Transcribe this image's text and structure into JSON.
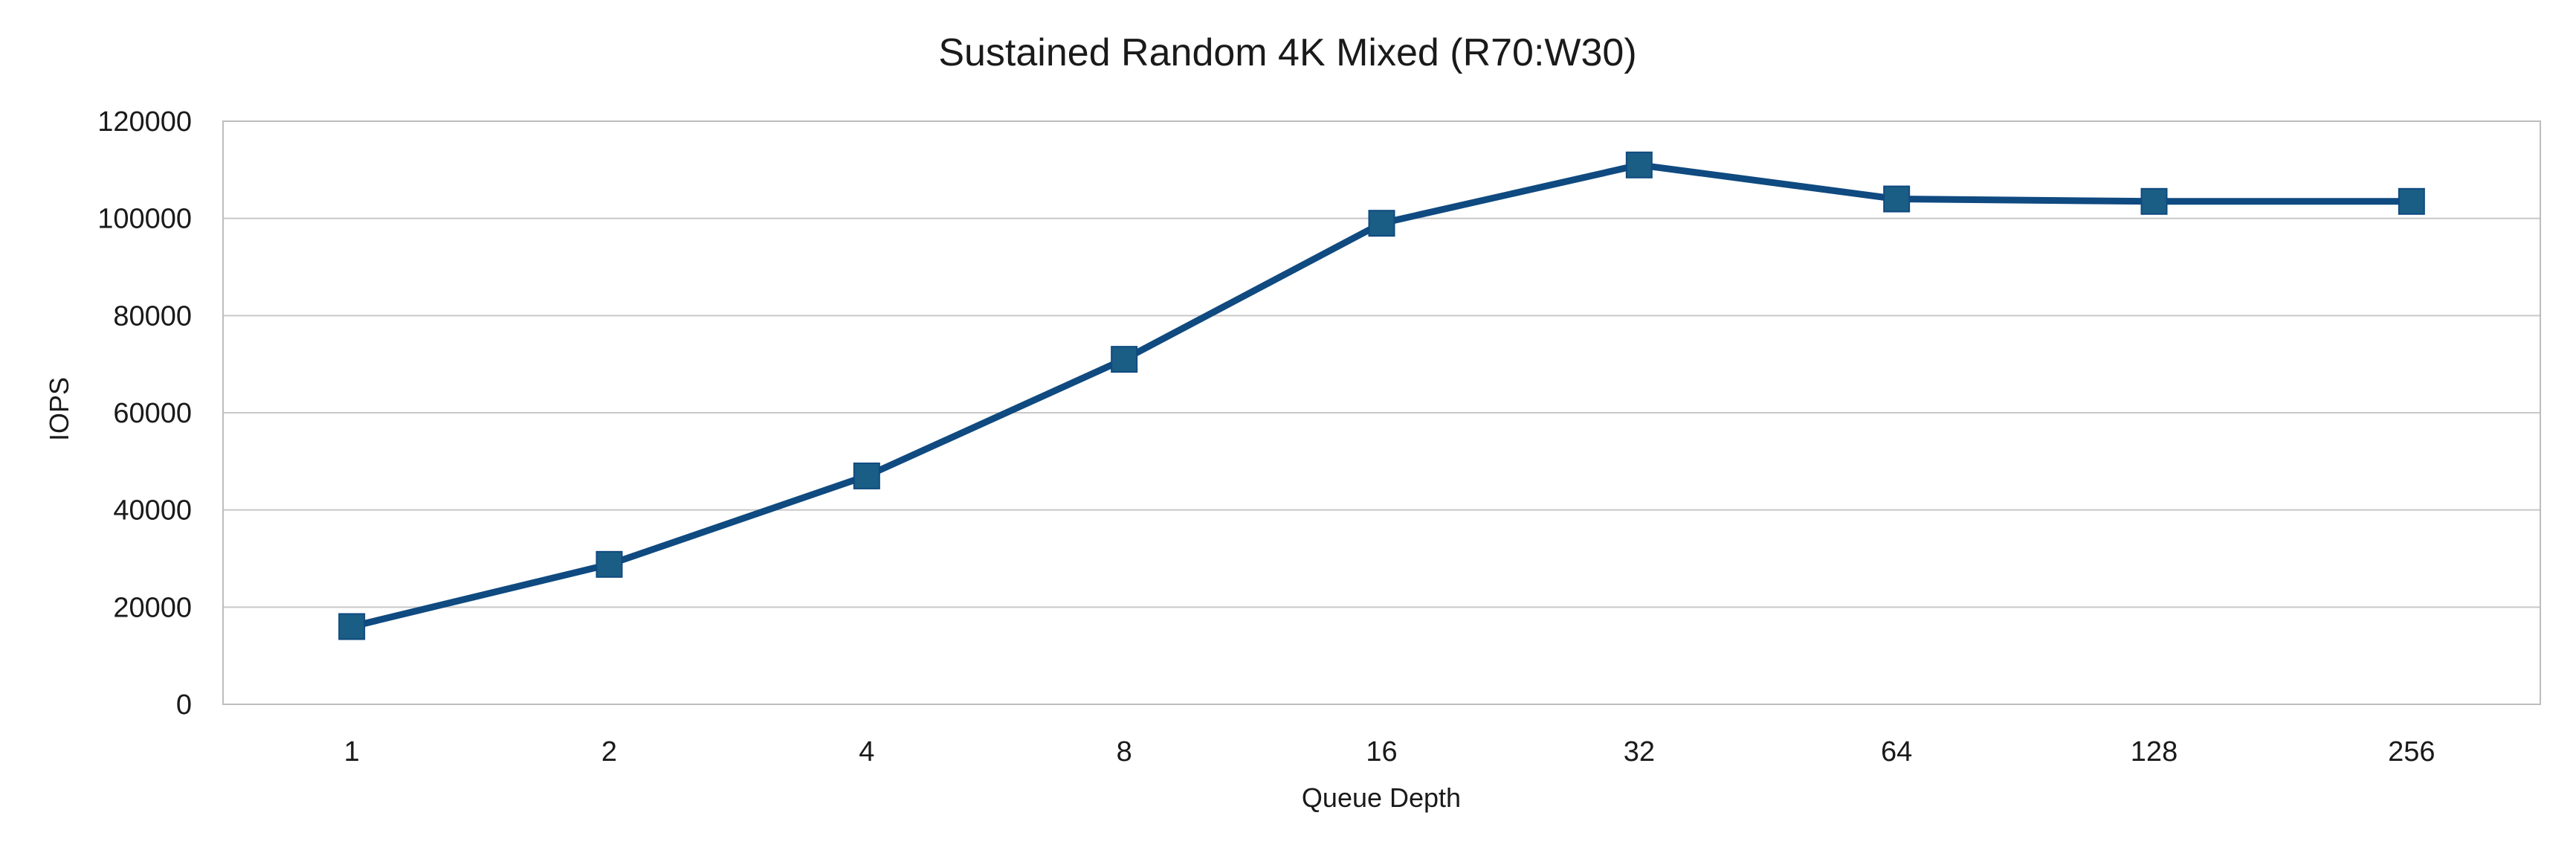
{
  "chart_data": {
    "type": "line",
    "title": "Sustained Random 4K Mixed (R70:W30)",
    "xlabel": "Queue Depth",
    "ylabel": "IOPS",
    "categories": [
      "1",
      "2",
      "4",
      "8",
      "16",
      "32",
      "64",
      "128",
      "256"
    ],
    "series": [
      {
        "values": [
          16000,
          28800,
          47000,
          71000,
          99000,
          111000,
          104000,
          103500,
          103500
        ]
      }
    ],
    "ylim": [
      0,
      120000
    ],
    "yticks": [
      "0",
      "20000",
      "40000",
      "60000",
      "80000",
      "100000",
      "120000"
    ],
    "grid": true,
    "legend": "none",
    "colors": {
      "line": "#0f4a80",
      "marker": "#1b5e85",
      "grid": "#c8c8c8",
      "frame": "#bdbdbd"
    }
  }
}
